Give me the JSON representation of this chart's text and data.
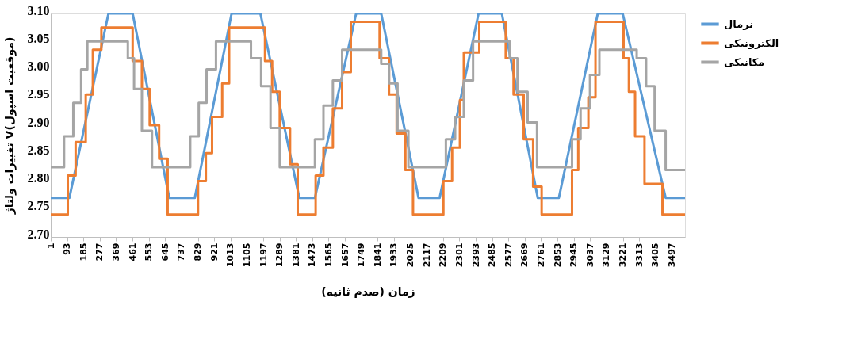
{
  "chart_data": {
    "type": "line",
    "xlabel": "زمان (صدم ثانیه)",
    "ylabel": "تغییرات ولتاژ V(موقعیت اسپول)",
    "xlim": [
      1,
      3571
    ],
    "xticks": [
      1,
      93,
      185,
      277,
      369,
      461,
      553,
      645,
      737,
      829,
      921,
      1013,
      1105,
      1197,
      1289,
      1381,
      1473,
      1565,
      1657,
      1749,
      1841,
      1933,
      2025,
      2117,
      2209,
      2301,
      2393,
      2485,
      2577,
      2669,
      2761,
      2853,
      2945,
      3037,
      3129,
      3221,
      3313,
      3405,
      3497
    ],
    "ylim": [
      2.7,
      3.1
    ],
    "yticks": [
      {
        "value": 2.7,
        "label": "2.70"
      },
      2.75,
      {
        "value": 2.8,
        "label": "2.80"
      },
      2.85,
      {
        "value": 2.9,
        "label": "2.90"
      },
      2.95,
      {
        "value": 3.0,
        "label": "3.00"
      },
      3.05,
      {
        "value": 3.1,
        "label": "3.10"
      }
    ],
    "grid": false,
    "legend": "right",
    "marker": "none",
    "series": [
      {
        "name": "نرمال",
        "color": "#5b9bd5",
        "type": "line",
        "x": [
          1,
          106,
          326,
          462,
          668,
          812,
          1019,
          1181,
          1400,
          1488,
          1720,
          1861,
          2071,
          2190,
          2409,
          2540,
          2742,
          2861,
          3080,
          3220,
          3462,
          3571
        ],
        "values": [
          2.77,
          2.77,
          3.1,
          3.1,
          2.77,
          2.77,
          3.1,
          3.1,
          2.77,
          2.77,
          3.1,
          3.1,
          2.77,
          2.77,
          3.1,
          3.1,
          2.77,
          2.77,
          3.1,
          3.1,
          2.77,
          2.77
        ]
      },
      {
        "name": "الکترونیکی",
        "color": "#ed7d31",
        "type": "step",
        "x": [
          1,
          97,
          141,
          198,
          238,
          286,
          462,
          514,
          558,
          611,
          659,
          830,
          874,
          909,
          966,
          1005,
          1207,
          1247,
          1290,
          1348,
          1391,
          1492,
          1536,
          1589,
          1641,
          1690,
          1852,
          1905,
          1948,
          1997,
          2040,
          2211,
          2260,
          2304,
          2326,
          2413,
          2562,
          2606,
          2663,
          2716,
          2764,
          2935,
          2970,
          3027,
          3067,
          3225,
          3255,
          3290,
          3343,
          3444,
          3571
        ],
        "values": [
          2.74,
          2.81,
          2.87,
          2.955,
          3.035,
          3.075,
          3.015,
          2.965,
          2.9,
          2.84,
          2.74,
          2.8,
          2.85,
          2.915,
          2.975,
          3.075,
          3.015,
          2.96,
          2.895,
          2.83,
          2.74,
          2.81,
          2.86,
          2.93,
          2.995,
          3.085,
          3.02,
          2.955,
          2.885,
          2.82,
          2.74,
          2.8,
          2.86,
          2.945,
          3.03,
          3.085,
          3.02,
          2.955,
          2.875,
          2.79,
          2.74,
          2.82,
          2.895,
          2.95,
          3.085,
          3.02,
          2.96,
          2.88,
          2.795,
          2.74,
          2.74
        ]
      },
      {
        "name": "مکانیکی",
        "color": "#a5a5a5",
        "type": "step",
        "x": [
          1,
          76,
          128,
          172,
          207,
          435,
          470,
          514,
          571,
          786,
          834,
          878,
          931,
          1128,
          1185,
          1238,
          1290,
          1488,
          1536,
          1589,
          1641,
          1861,
          1905,
          1953,
          2014,
          2225,
          2277,
          2326,
          2378,
          2584,
          2628,
          2685,
          2738,
          2935,
          2983,
          3036,
          3089,
          3299,
          3352,
          3400,
          3462,
          3571
        ],
        "values": [
          2.825,
          2.88,
          2.94,
          3.0,
          3.05,
          3.02,
          2.965,
          2.89,
          2.825,
          2.88,
          2.94,
          3.0,
          3.05,
          3.02,
          2.97,
          2.895,
          2.825,
          2.875,
          2.935,
          2.98,
          3.035,
          3.01,
          2.975,
          2.89,
          2.825,
          2.875,
          2.915,
          2.98,
          3.05,
          3.02,
          2.96,
          2.905,
          2.825,
          2.875,
          2.93,
          2.99,
          3.035,
          3.02,
          2.97,
          2.89,
          2.82,
          2.82
        ]
      }
    ]
  }
}
